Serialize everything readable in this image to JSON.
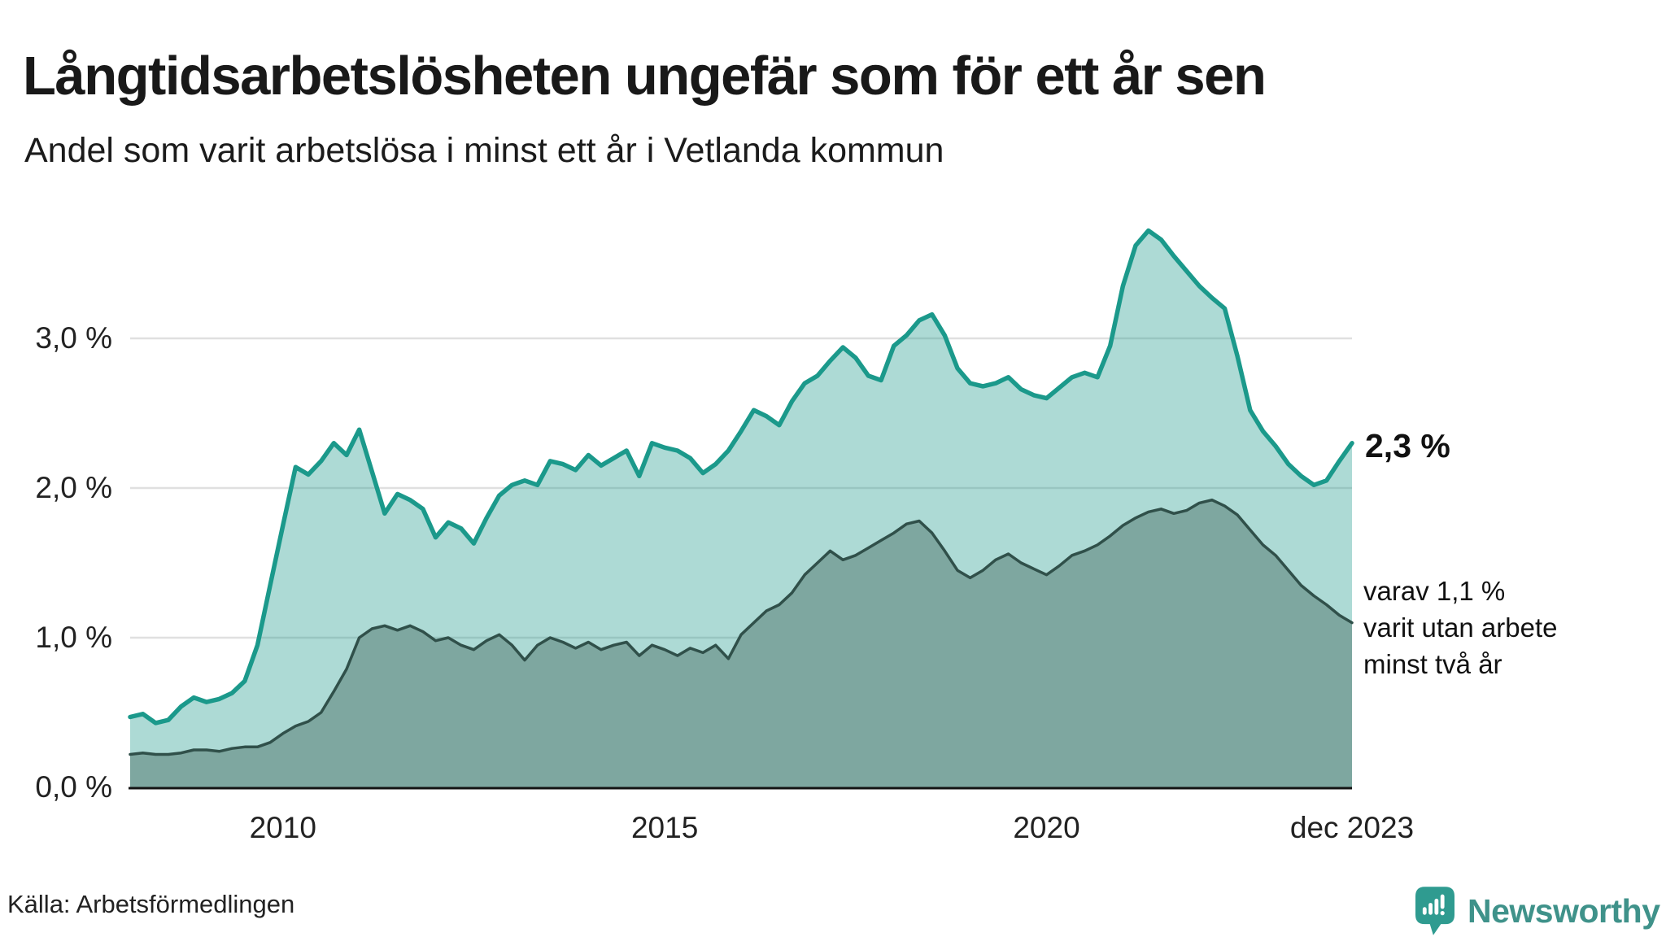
{
  "header": {
    "title": "Långtidsarbetslösheten ungefär som för ett år sen",
    "subtitle": "Andel som varit arbetslösa i minst ett år i Vetlanda kommun"
  },
  "footer": {
    "source": "Källa: Arbetsförmedlingen",
    "brand": "Newsworthy"
  },
  "colors": {
    "accent": "#1B998B",
    "fill_light": "rgba(27,153,139,0.36)",
    "fill_dark": "#7EA7A0",
    "line_dark": "#30504A",
    "grid": "#E0E0E0",
    "axis": "#141414",
    "brand_icon": "#2F9B90",
    "brand_text": "#3F928A"
  },
  "chart_data": {
    "type": "area",
    "title": "Långtidsarbetslösheten ungefär som för ett år sen",
    "subtitle": "Andel som varit arbetslösa i minst ett år i Vetlanda kommun",
    "unit": "%",
    "ylim": [
      0,
      3.9
    ],
    "grid": "horizontal",
    "yticks": [
      {
        "label": "3,0 %",
        "value": 3
      },
      {
        "label": "2,0 %",
        "value": 2
      },
      {
        "label": "1,0 %",
        "value": 1
      },
      {
        "label": "0,0 %",
        "value": 0
      }
    ],
    "xticks": [
      {
        "label": "2010",
        "index": 12
      },
      {
        "label": "2015",
        "index": 42
      },
      {
        "label": "2020",
        "index": 72
      },
      {
        "label": "dec 2023",
        "index": 96
      }
    ],
    "end_labels": {
      "main": "2,3 %",
      "sub": "varav 1,1 %\nvarit utan arbete\nminst två år"
    },
    "series": [
      {
        "name": "Arbetslösa minst ett år",
        "end_value": "2,3 %",
        "values": [
          0.47,
          0.49,
          0.43,
          0.45,
          0.54,
          0.6,
          0.57,
          0.59,
          0.63,
          0.71,
          0.95,
          1.35,
          1.75,
          2.14,
          2.09,
          2.18,
          2.3,
          2.22,
          2.39,
          2.11,
          1.83,
          1.96,
          1.92,
          1.86,
          1.67,
          1.77,
          1.73,
          1.63,
          1.8,
          1.95,
          2.02,
          2.05,
          2.02,
          2.18,
          2.16,
          2.12,
          2.22,
          2.15,
          2.2,
          2.25,
          2.08,
          2.3,
          2.27,
          2.25,
          2.2,
          2.1,
          2.16,
          2.25,
          2.38,
          2.52,
          2.48,
          2.42,
          2.58,
          2.7,
          2.75,
          2.85,
          2.94,
          2.87,
          2.75,
          2.72,
          2.95,
          3.02,
          3.12,
          3.16,
          3.02,
          2.8,
          2.7,
          2.68,
          2.7,
          2.74,
          2.66,
          2.62,
          2.6,
          2.67,
          2.74,
          2.77,
          2.74,
          2.95,
          3.35,
          3.62,
          3.72,
          3.66,
          3.55,
          3.45,
          3.35,
          3.27,
          3.2,
          2.88,
          2.52,
          2.38,
          2.28,
          2.16,
          2.08,
          2.02,
          2.05,
          2.18,
          2.3
        ]
      },
      {
        "name": "Varav utan arbete minst två år",
        "end_value": "1,1 %",
        "values": [
          0.22,
          0.23,
          0.22,
          0.22,
          0.23,
          0.25,
          0.25,
          0.24,
          0.26,
          0.27,
          0.27,
          0.3,
          0.36,
          0.41,
          0.44,
          0.5,
          0.64,
          0.79,
          1.0,
          1.06,
          1.08,
          1.05,
          1.08,
          1.04,
          0.98,
          1.0,
          0.95,
          0.92,
          0.98,
          1.02,
          0.95,
          0.85,
          0.95,
          1.0,
          0.97,
          0.93,
          0.97,
          0.92,
          0.95,
          0.97,
          0.88,
          0.95,
          0.92,
          0.88,
          0.93,
          0.9,
          0.95,
          0.86,
          1.02,
          1.1,
          1.18,
          1.22,
          1.3,
          1.42,
          1.5,
          1.58,
          1.52,
          1.55,
          1.6,
          1.65,
          1.7,
          1.76,
          1.78,
          1.7,
          1.58,
          1.45,
          1.4,
          1.45,
          1.52,
          1.56,
          1.5,
          1.46,
          1.42,
          1.48,
          1.55,
          1.58,
          1.62,
          1.68,
          1.75,
          1.8,
          1.84,
          1.86,
          1.83,
          1.85,
          1.9,
          1.92,
          1.88,
          1.82,
          1.72,
          1.62,
          1.55,
          1.45,
          1.35,
          1.28,
          1.22,
          1.15,
          1.1
        ]
      }
    ]
  }
}
